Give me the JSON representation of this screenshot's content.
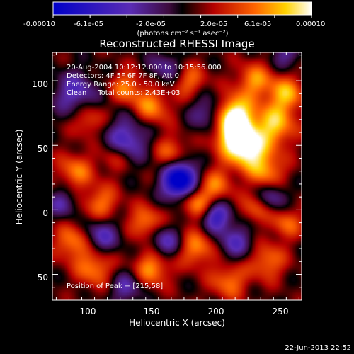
{
  "colorbar": {
    "min": -0.0001,
    "max": 0.0001,
    "tick_labels": [
      "-0.00010",
      "-6.1e-05",
      "-2.0e-05",
      "2.0e-05",
      "6.1e-05",
      "0.00010"
    ],
    "unit_label": "(photons cm⁻² s⁻¹ asec⁻²)"
  },
  "chart_data": {
    "type": "heatmap",
    "title": "Reconstructed RHESSI Image",
    "xlabel": "Heliocentric X (arcsec)",
    "ylabel": "Heliocentric Y (arcsec)",
    "xlim": [
      72,
      267
    ],
    "ylim": [
      -70,
      122
    ],
    "x_ticks": [
      100,
      150,
      200,
      250
    ],
    "y_ticks": [
      -50,
      0,
      50,
      100
    ],
    "x_tick_labels": [
      "100",
      "150",
      "200",
      "250"
    ],
    "y_tick_labels": [
      "-50",
      "0",
      "50",
      "100"
    ],
    "colormap": "rhessi-blue-purple-red-yellow-white",
    "peak": [
      215,
      58
    ],
    "annotations": [
      "20-Aug-2004 10:12:12.000 to 10:15:56.000",
      "Detectors: 4F 5F 6F 7F 8F, Att 0",
      "Energy Range: 25.0 - 50.0 keV",
      "Clean     Total counts: 2.43E+03"
    ],
    "peak_label": "Position of Peak = [215,58]",
    "blobs": [
      {
        "x": 215,
        "y": 58,
        "a": 1.0,
        "s": 11
      },
      {
        "x": 213,
        "y": 75,
        "a": 0.85,
        "s": 10
      },
      {
        "x": 225,
        "y": 45,
        "a": 0.7,
        "s": 10
      },
      {
        "x": 245,
        "y": 65,
        "a": 0.7,
        "s": 12
      },
      {
        "x": 255,
        "y": 90,
        "a": 0.6,
        "s": 10
      },
      {
        "x": 230,
        "y": 100,
        "a": 0.55,
        "s": 10
      },
      {
        "x": 240,
        "y": 30,
        "a": 0.55,
        "s": 10
      },
      {
        "x": 200,
        "y": 20,
        "a": 0.45,
        "s": 10
      },
      {
        "x": 185,
        "y": 5,
        "a": 0.55,
        "s": 9
      },
      {
        "x": 165,
        "y": 45,
        "a": 0.45,
        "s": 9
      },
      {
        "x": 150,
        "y": 80,
        "a": 0.55,
        "s": 10
      },
      {
        "x": 130,
        "y": 95,
        "a": 0.5,
        "s": 9
      },
      {
        "x": 100,
        "y": 70,
        "a": 0.45,
        "s": 9
      },
      {
        "x": 90,
        "y": 30,
        "a": 0.5,
        "s": 10
      },
      {
        "x": 110,
        "y": 5,
        "a": 0.5,
        "s": 10
      },
      {
        "x": 88,
        "y": -25,
        "a": 0.55,
        "s": 10
      },
      {
        "x": 105,
        "y": -45,
        "a": 0.55,
        "s": 10
      },
      {
        "x": 145,
        "y": -10,
        "a": 0.55,
        "s": 9
      },
      {
        "x": 150,
        "y": -45,
        "a": 0.6,
        "s": 10
      },
      {
        "x": 185,
        "y": -30,
        "a": 0.55,
        "s": 10
      },
      {
        "x": 210,
        "y": -55,
        "a": 0.5,
        "s": 10
      },
      {
        "x": 240,
        "y": -40,
        "a": 0.5,
        "s": 10
      },
      {
        "x": 255,
        "y": -10,
        "a": 0.45,
        "s": 9
      },
      {
        "x": 230,
        "y": 0,
        "a": 0.4,
        "s": 8
      },
      {
        "x": 180,
        "y": 100,
        "a": 0.45,
        "s": 9
      },
      {
        "x": 120,
        "y": 40,
        "a": 0.35,
        "s": 8
      },
      {
        "x": 170,
        "y": 20,
        "a": -0.9,
        "s": 9
      },
      {
        "x": 175,
        "y": 28,
        "a": -0.6,
        "s": 9
      },
      {
        "x": 200,
        "y": -5,
        "a": -0.75,
        "s": 8
      },
      {
        "x": 130,
        "y": 55,
        "a": -0.6,
        "s": 12
      },
      {
        "x": 90,
        "y": 90,
        "a": -0.55,
        "s": 12
      },
      {
        "x": 110,
        "y": -20,
        "a": -0.55,
        "s": 10
      },
      {
        "x": 160,
        "y": -25,
        "a": -0.55,
        "s": 9
      },
      {
        "x": 215,
        "y": -25,
        "a": -0.5,
        "s": 10
      },
      {
        "x": 195,
        "y": 75,
        "a": -0.5,
        "s": 10
      },
      {
        "x": 245,
        "y": 10,
        "a": -0.45,
        "s": 8
      },
      {
        "x": 130,
        "y": -60,
        "a": -0.45,
        "s": 9
      },
      {
        "x": 80,
        "y": 5,
        "a": -0.45,
        "s": 8
      },
      {
        "x": 160,
        "y": 110,
        "a": -0.4,
        "s": 9
      },
      {
        "x": 255,
        "y": 120,
        "a": -0.4,
        "s": 8
      }
    ]
  },
  "footer": {
    "timestamp": "22-Jun-2013 22:52"
  }
}
